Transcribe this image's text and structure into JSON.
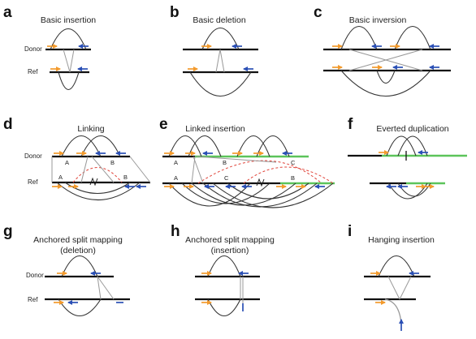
{
  "colors": {
    "forward_read": "#f39a2c",
    "reverse_read": "#2a4fb5",
    "track": "#111111",
    "linked_dashed": "#e0443a",
    "highlight_segment": "#5cc45a"
  },
  "panels": [
    {
      "letter": "a",
      "title": "Basic insertion"
    },
    {
      "letter": "b",
      "title": "Basic deletion"
    },
    {
      "letter": "c",
      "title": "Basic inversion"
    },
    {
      "letter": "d",
      "title": "Linking"
    },
    {
      "letter": "e",
      "title": "Linked insertion"
    },
    {
      "letter": "f",
      "title": "Everted duplication"
    },
    {
      "letter": "g",
      "title_line1": "Anchored split mapping",
      "title_line2": "(deletion)"
    },
    {
      "letter": "h",
      "title_line1": "Anchored split mapping",
      "title_line2": "(insertion)"
    },
    {
      "letter": "i",
      "title": "Hanging insertion"
    }
  ],
  "row_labels": {
    "donor": "Donor",
    "ref": "Ref"
  },
  "segments": {
    "a": "A",
    "b": "B",
    "c": "C"
  }
}
